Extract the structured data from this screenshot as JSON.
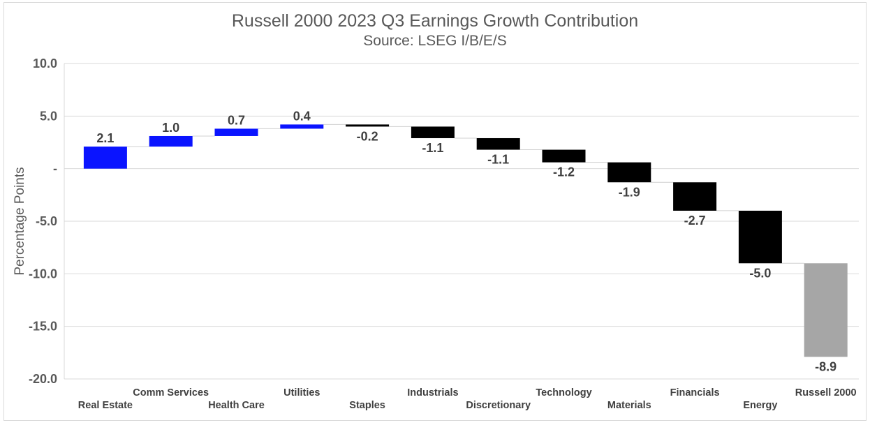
{
  "chart_data": {
    "type": "bar",
    "subtype": "waterfall",
    "title": "Russell 2000 2023 Q3 Earnings Growth Contribution",
    "subtitle": "Source: LSEG I/B/E/S",
    "xlabel": "",
    "ylabel": "Percentage Points",
    "ylim": [
      -20,
      10
    ],
    "yticks": [
      10,
      5,
      0,
      -5,
      -10,
      -15,
      -20
    ],
    "ytick_labels": [
      "10.0",
      "5.0",
      "-",
      "-5.0",
      "-10.0",
      "-15.0",
      "-20.0"
    ],
    "grid": true,
    "categories": [
      "Real Estate",
      "Comm Services",
      "Health Care",
      "Utilities",
      "Staples",
      "Industrials",
      "Discretionary",
      "Technology",
      "Materials",
      "Financials",
      "Energy",
      "Russell 2000"
    ],
    "values": [
      2.1,
      1.0,
      0.7,
      0.4,
      -0.2,
      -1.1,
      -1.1,
      -1.2,
      -1.9,
      -2.7,
      -5.0,
      -8.9
    ],
    "data_labels": [
      "2.1",
      "1.0",
      "0.7",
      "0.4",
      "-0.2",
      "-1.1",
      "-1.1",
      "-1.2",
      "-1.9",
      "-2.7",
      "-5.0",
      "-8.9"
    ],
    "total_index": 11,
    "colors": {
      "increase": "#0a14ff",
      "decrease": "#000000",
      "total": "#a6a6a6",
      "grid": "#d9d9d9",
      "text": "#595959"
    }
  }
}
